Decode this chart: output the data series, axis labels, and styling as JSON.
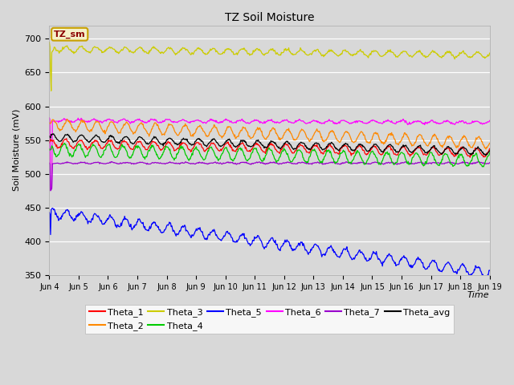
{
  "title": "TZ Soil Moisture",
  "ylabel": "Soil Moisture (mV)",
  "xlabel": "Time",
  "ylim": [
    350,
    720
  ],
  "yticks": [
    350,
    400,
    450,
    500,
    550,
    600,
    650,
    700
  ],
  "xtick_labels": [
    "Jun 4",
    "Jun 5",
    "Jun 6",
    "Jun 7",
    "Jun 8",
    "Jun 9",
    "Jun 10",
    "Jun 11",
    "Jun 12",
    "Jun 13",
    "Jun 14",
    "Jun 15",
    "Jun 16",
    "Jun 17",
    "Jun 18",
    "Jun 19"
  ],
  "background_color": "#d8d8d8",
  "plot_bg_color": "#d8d8d8",
  "legend_bg": "#f5f0c8",
  "legend_edge": "#c8a000",
  "series": {
    "Theta_1": {
      "color": "#ff0000"
    },
    "Theta_2": {
      "color": "#ff8800"
    },
    "Theta_3": {
      "color": "#cccc00"
    },
    "Theta_4": {
      "color": "#00cc00"
    },
    "Theta_5": {
      "color": "#0000ff"
    },
    "Theta_6": {
      "color": "#ff00ff"
    },
    "Theta_7": {
      "color": "#9900cc"
    },
    "Theta_avg": {
      "color": "#000000"
    }
  }
}
